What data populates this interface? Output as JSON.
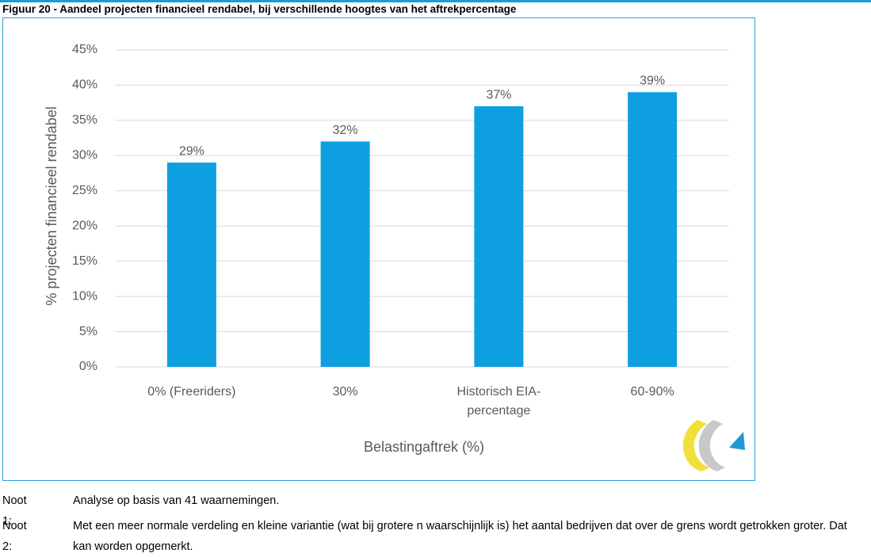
{
  "chart_data": {
    "type": "bar",
    "title": "Figuur 20 - Aandeel projecten financieel rendabel, bij verschillende hoogtes van het aftrekpercentage",
    "categories": [
      "0% (Freeriders)",
      "30%",
      "Historisch EIA-percentage",
      "60-90%"
    ],
    "values": [
      29,
      32,
      37,
      39
    ],
    "value_labels": [
      "29%",
      "32%",
      "37%",
      "39%"
    ],
    "color": "#0e9fe0",
    "ylim": [
      0,
      45
    ],
    "yticks": [
      {
        "value": 0,
        "label": "0%"
      },
      {
        "value": 5,
        "label": "5%"
      },
      {
        "value": 10,
        "label": "10%"
      },
      {
        "value": 15,
        "label": "15%"
      },
      {
        "value": 20,
        "label": "20%"
      },
      {
        "value": 25,
        "label": "25%"
      },
      {
        "value": 30,
        "label": "30%"
      },
      {
        "value": 35,
        "label": "35%"
      },
      {
        "value": 40,
        "label": "40%"
      },
      {
        "value": 45,
        "label": "45%"
      }
    ],
    "ylabel": "% projecten financieel rendabel",
    "xlabel": "Belastingaftrek (%)",
    "grid": true
  },
  "notes": [
    {
      "label": "Noot 1:",
      "text": "Analyse op basis van 41 waarnemingen."
    },
    {
      "label": "Noot 2:",
      "text": "Met een meer normale verdeling en kleine variantie (wat bij grotere n waarschijnlijk is) het aantal bedrijven dat over de grens wordt getrokken groter. Dat kan worden opgemerkt."
    }
  ]
}
